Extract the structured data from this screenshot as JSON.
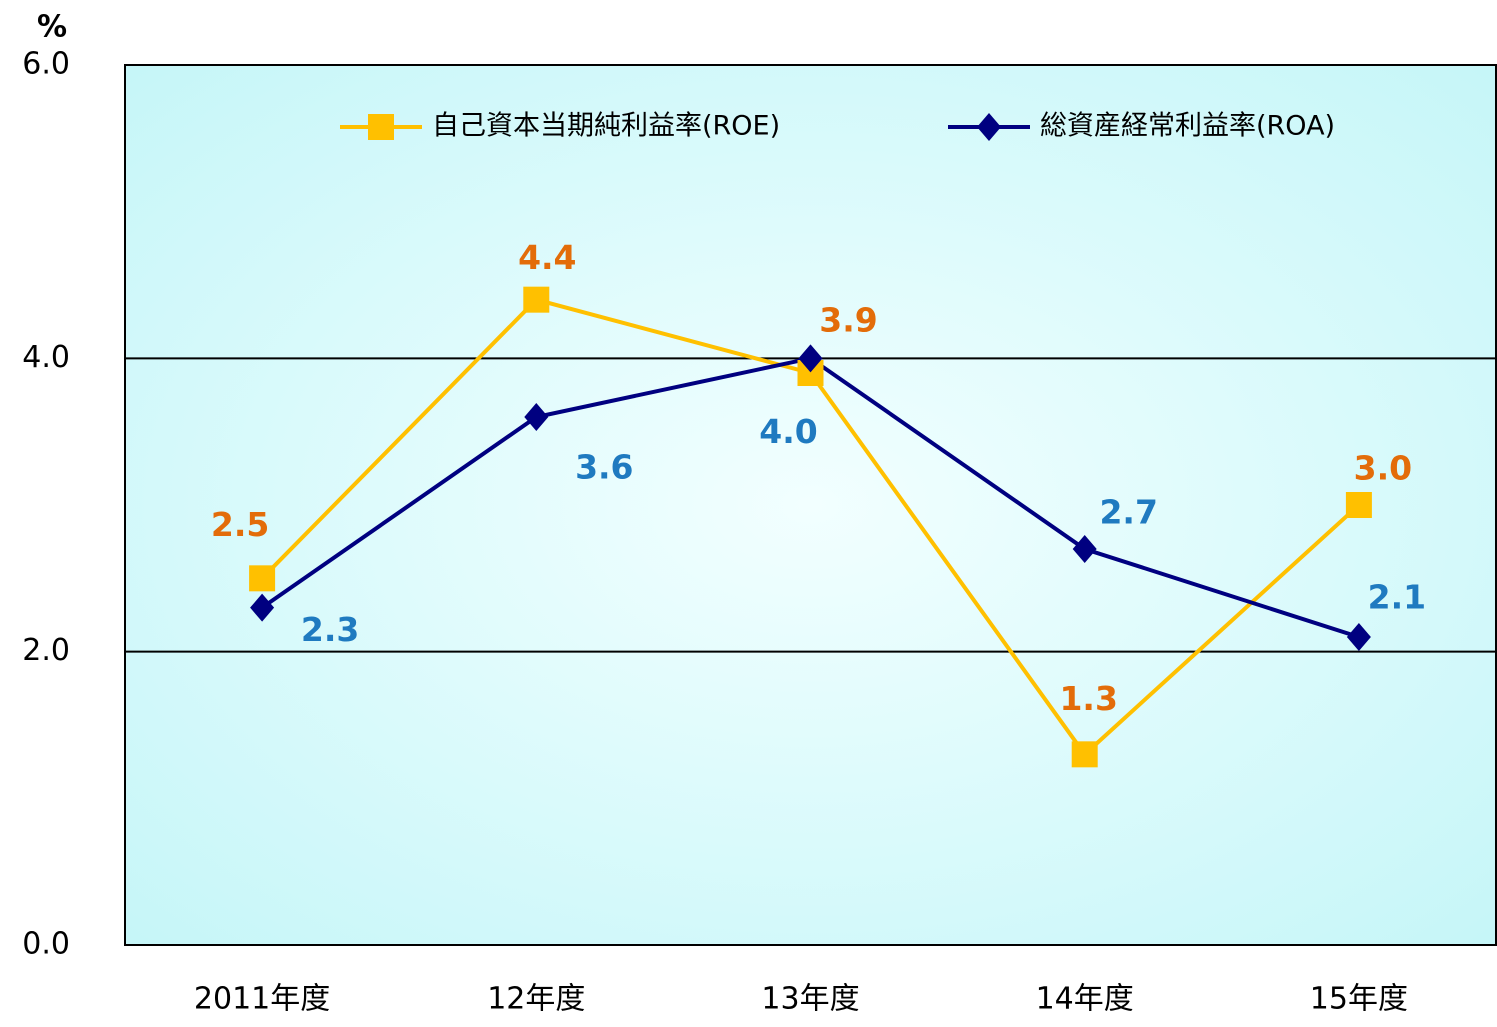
{
  "chart_data": {
    "type": "line",
    "unit": "%",
    "categories": [
      "2011年度",
      "12年度",
      "13年度",
      "14年度",
      "15年度"
    ],
    "series": [
      {
        "name": "自己資本当期純利益率(ROE)",
        "color": "#ffc000",
        "label_color": "#e36c09",
        "marker": "square",
        "values": [
          2.5,
          4.4,
          3.9,
          1.3,
          3.0
        ],
        "value_labels": [
          "2.5",
          "4.4",
          "3.9",
          "1.3",
          "3.0"
        ]
      },
      {
        "name": "総資産経常利益率(ROA)",
        "color": "#000080",
        "label_color": "#1f7ac0",
        "marker": "diamond",
        "values": [
          2.3,
          3.6,
          4.0,
          2.7,
          2.1
        ],
        "value_labels": [
          "2.3",
          "3.6",
          "4.0",
          "2.7",
          "2.1"
        ]
      }
    ],
    "ylim": [
      0,
      6
    ],
    "yticks": [
      {
        "value": 0,
        "label": "0.0"
      },
      {
        "value": 2,
        "label": "2.0"
      },
      {
        "value": 4,
        "label": "4.0"
      },
      {
        "value": 6,
        "label": "6.0"
      }
    ],
    "grid": true,
    "legend": "top"
  }
}
